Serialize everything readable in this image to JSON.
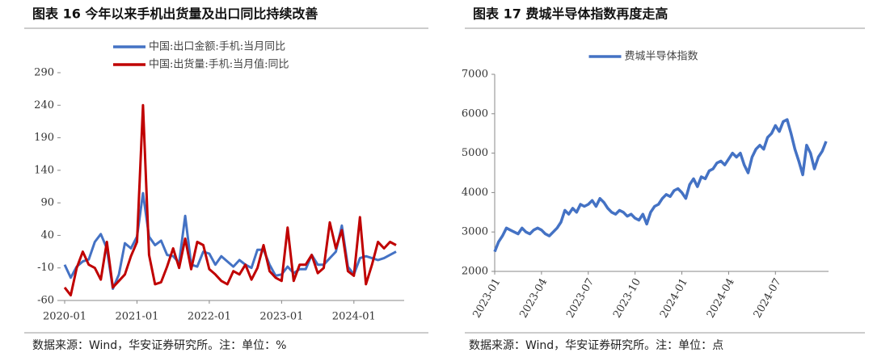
{
  "chart_data": [
    {
      "type": "line",
      "title": "图表 16 今年以来手机出货量及出口同比持续改善",
      "source": "数据来源：Wind，华安证券研究所。注：单位：%",
      "x": [
        "2020-01",
        "2020-02",
        "2020-03",
        "2020-04",
        "2020-05",
        "2020-06",
        "2020-07",
        "2020-08",
        "2020-09",
        "2020-10",
        "2020-11",
        "2020-12",
        "2021-01",
        "2021-02",
        "2021-03",
        "2021-04",
        "2021-05",
        "2021-06",
        "2021-07",
        "2021-08",
        "2021-09",
        "2021-10",
        "2021-11",
        "2021-12",
        "2022-01",
        "2022-02",
        "2022-03",
        "2022-04",
        "2022-05",
        "2022-06",
        "2022-07",
        "2022-08",
        "2022-09",
        "2022-10",
        "2022-11",
        "2022-12",
        "2023-01",
        "2023-02",
        "2023-03",
        "2023-04",
        "2023-05",
        "2023-06",
        "2023-07",
        "2023-08",
        "2023-09",
        "2023-10",
        "2023-11",
        "2023-12",
        "2024-01",
        "2024-02",
        "2024-03",
        "2024-04",
        "2024-05",
        "2024-06",
        "2024-07",
        "2024-08"
      ],
      "xticks": [
        "2020-01",
        "2021-01",
        "2022-01",
        "2023-01",
        "2024-01"
      ],
      "ylim": [
        -60,
        290
      ],
      "yticks": [
        -60,
        -10,
        40,
        90,
        140,
        190,
        240,
        290
      ],
      "legend": "top-left",
      "series": [
        {
          "name": "中国:出口金额:手机:当月同比",
          "color": "#4472c4",
          "values": [
            -5,
            -25,
            -8,
            0,
            3,
            30,
            42,
            20,
            -42,
            -20,
            28,
            20,
            38,
            105,
            38,
            25,
            32,
            10,
            8,
            -2,
            70,
            -5,
            -8,
            15,
            12,
            -5,
            8,
            0,
            -8,
            2,
            -5,
            -10,
            18,
            18,
            -5,
            -22,
            -20,
            -8,
            -18,
            -12,
            -12,
            10,
            -5,
            -5,
            5,
            15,
            55,
            -8,
            -20,
            5,
            8,
            5,
            2,
            5,
            10,
            15
          ]
        },
        {
          "name": "中国:出货量:手机:当月值:同比",
          "color": "#c00000",
          "values": [
            -40,
            -52,
            -10,
            15,
            -5,
            -10,
            -28,
            30,
            -40,
            -30,
            -20,
            8,
            30,
            240,
            10,
            -35,
            -32,
            -8,
            20,
            -10,
            35,
            -12,
            30,
            25,
            -12,
            -20,
            -30,
            -35,
            -15,
            -20,
            -5,
            -28,
            -10,
            25,
            -15,
            -25,
            -30,
            52,
            -30,
            -5,
            -5,
            10,
            -18,
            -10,
            60,
            20,
            48,
            -15,
            -22,
            68,
            -35,
            -5,
            30,
            20,
            30,
            25
          ]
        }
      ]
    },
    {
      "type": "line",
      "title": "图表 17 费城半导体指数再度走高",
      "source": "数据来源：Wind，华安证券研究所。注：单位：点",
      "categories": [
        "2023-01",
        null,
        null,
        null,
        null,
        null,
        null,
        null,
        null,
        null,
        null,
        null,
        "2023-04",
        null,
        null,
        null,
        null,
        null,
        null,
        null,
        null,
        null,
        null,
        null,
        "2023-07",
        null,
        null,
        null,
        null,
        null,
        null,
        null,
        null,
        null,
        null,
        null,
        "2023-10",
        null,
        null,
        null,
        null,
        null,
        null,
        null,
        null,
        null,
        null,
        null,
        "2024-01",
        null,
        null,
        null,
        null,
        null,
        null,
        null,
        null,
        null,
        null,
        null,
        "2024-04",
        null,
        null,
        null,
        null,
        null,
        null,
        null,
        null,
        null,
        null,
        null,
        "2024-07",
        null,
        null,
        null,
        null,
        null,
        null,
        null,
        null,
        null,
        null,
        null,
        null,
        null
      ],
      "ylim": [
        2000,
        7000
      ],
      "yticks": [
        2000,
        3000,
        4000,
        5000,
        6000,
        7000
      ],
      "legend": "top-center",
      "series": [
        {
          "name": "费城半导体指数",
          "color": "#4472c4",
          "values": [
            2500,
            2750,
            2900,
            3100,
            3050,
            3000,
            2950,
            3100,
            3000,
            2950,
            3050,
            3100,
            3050,
            2950,
            2900,
            3000,
            3100,
            3250,
            3550,
            3450,
            3600,
            3500,
            3700,
            3650,
            3700,
            3800,
            3650,
            3850,
            3750,
            3600,
            3500,
            3450,
            3550,
            3500,
            3400,
            3450,
            3350,
            3300,
            3450,
            3200,
            3500,
            3650,
            3700,
            3850,
            3950,
            3900,
            4050,
            4100,
            4000,
            3850,
            4200,
            4350,
            4150,
            4400,
            4350,
            4550,
            4600,
            4750,
            4800,
            4700,
            4850,
            5000,
            4900,
            5000,
            4700,
            4500,
            4900,
            5100,
            5200,
            5100,
            5400,
            5500,
            5700,
            5550,
            5800,
            5850,
            5500,
            5100,
            4800,
            4450,
            5200,
            5000,
            4600,
            4900,
            5050,
            5300
          ]
        }
      ]
    }
  ]
}
